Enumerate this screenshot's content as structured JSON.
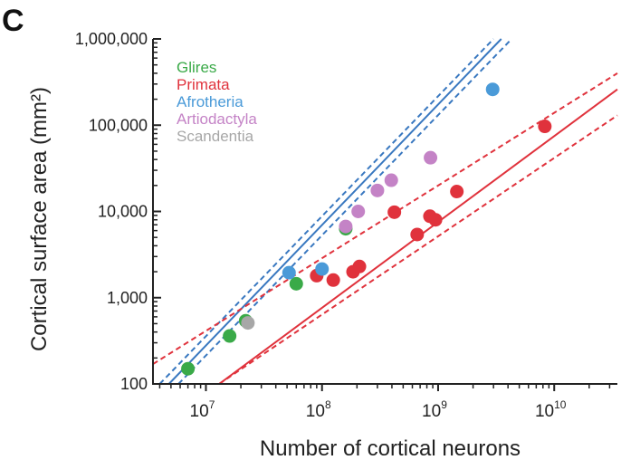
{
  "panel_label": "C",
  "chart_data": {
    "type": "scatter",
    "title": "",
    "xlabel": "Number of cortical neurons",
    "ylabel": "Cortical surface area (mm²)",
    "x_scale": "log",
    "y_scale": "log",
    "xlim": [
      3500000,
      35000000000
    ],
    "ylim": [
      100,
      1000000
    ],
    "x_ticks": [
      {
        "value": 10000000,
        "base": "10",
        "exp": "7"
      },
      {
        "value": 100000000,
        "base": "10",
        "exp": "8"
      },
      {
        "value": 1000000000,
        "base": "10",
        "exp": "9"
      },
      {
        "value": 10000000000,
        "base": "10",
        "exp": "10"
      }
    ],
    "y_ticks": [
      {
        "value": 100,
        "label": "100"
      },
      {
        "value": 1000,
        "label": "1,000"
      },
      {
        "value": 10000,
        "label": "10,000"
      },
      {
        "value": 100000,
        "label": "100,000"
      },
      {
        "value": 1000000,
        "label": "1,000,000"
      }
    ],
    "legend_position": "top-left",
    "series": [
      {
        "name": "Glires",
        "color": "#3aaa48",
        "points": [
          [
            7000000,
            150
          ],
          [
            16000000,
            360
          ],
          [
            22000000,
            540
          ],
          [
            60000000,
            1450
          ],
          [
            160000000,
            6300
          ]
        ]
      },
      {
        "name": "Primata",
        "color": "#e0323c",
        "points": [
          [
            90000000,
            1800
          ],
          [
            125000000,
            1600
          ],
          [
            185000000,
            2000
          ],
          [
            210000000,
            2300
          ],
          [
            420000000,
            9800
          ],
          [
            660000000,
            5400
          ],
          [
            850000000,
            8800
          ],
          [
            950000000,
            8000
          ],
          [
            1450000000,
            17000
          ],
          [
            8300000000,
            97000
          ]
        ]
      },
      {
        "name": "Afrotheria",
        "color": "#4a9ad8",
        "points": [
          [
            52000000,
            1950
          ],
          [
            100000000,
            2150
          ],
          [
            2950000000,
            260000
          ]
        ]
      },
      {
        "name": "Artiodactyla",
        "color": "#c483c6",
        "points": [
          [
            160000000,
            6700
          ],
          [
            205000000,
            10000
          ],
          [
            300000000,
            17500
          ],
          [
            395000000,
            23000
          ],
          [
            860000000,
            42000
          ]
        ]
      },
      {
        "name": "Scandentia",
        "color": "#a7a7a7",
        "points": [
          [
            23000000,
            510
          ]
        ]
      }
    ],
    "fits": [
      {
        "group": "Afrotheria/Glires/Artiodactyla",
        "color": "#3978c0",
        "center": [
          [
            4800000,
            100
          ],
          [
            3500000000,
            1000000
          ]
        ],
        "upper": [
          [
            4000000,
            100
          ],
          [
            3000000000,
            1000000
          ]
        ],
        "lower": [
          [
            5800000,
            100
          ],
          [
            4300000000,
            1000000
          ]
        ]
      },
      {
        "group": "Primata",
        "color": "#e0323c",
        "center": [
          [
            13000000,
            100
          ],
          [
            35000000000,
            260000
          ]
        ],
        "upper": [
          [
            3500000,
            170
          ],
          [
            35000000000,
            400000
          ]
        ],
        "lower": [
          [
            13000000,
            100
          ],
          [
            35000000000,
            130000
          ]
        ]
      }
    ]
  }
}
